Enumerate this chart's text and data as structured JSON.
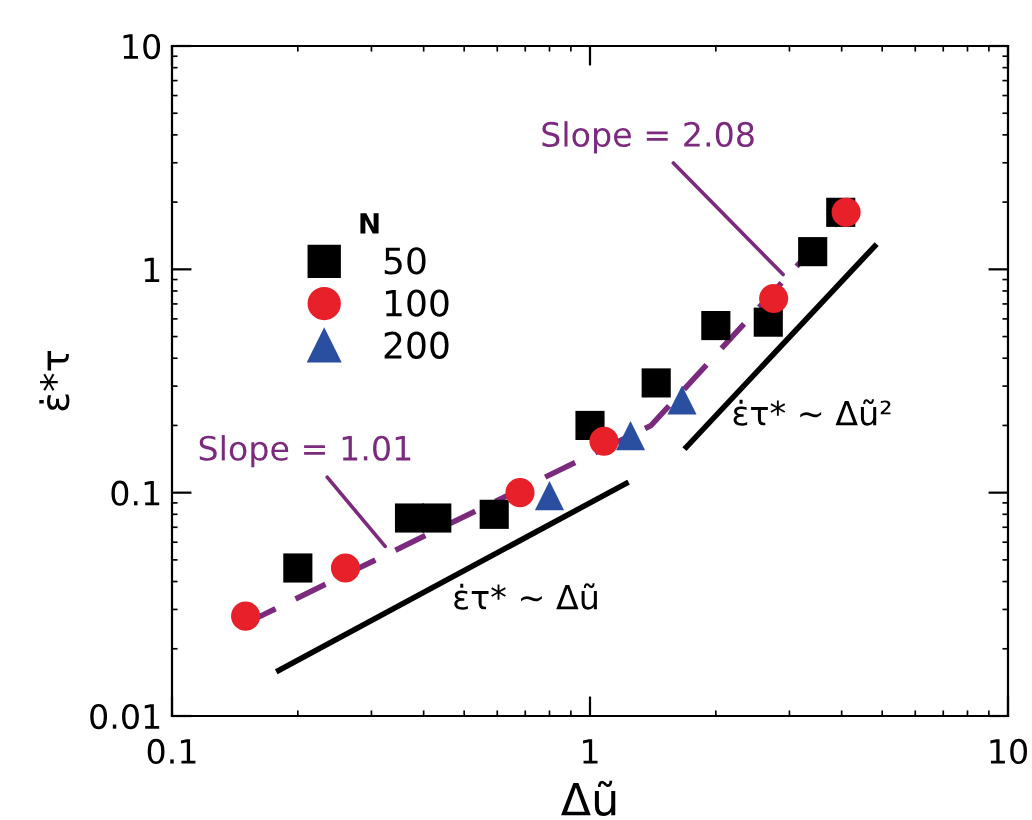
{
  "chart_data": {
    "type": "scatter",
    "xlabel": "Δũ",
    "ylabel": "ε̇*τ",
    "legend_title": "N",
    "log": "xy",
    "xlim": [
      0.1,
      10
    ],
    "ylim": [
      0.01,
      10
    ],
    "xticks": [
      0.1,
      1,
      10
    ],
    "yticks": [
      0.01,
      0.1,
      1,
      10
    ],
    "grid": false,
    "legend": "top left",
    "series": [
      {
        "name": "50",
        "color": "#000000",
        "marker": "square",
        "x": [
          0.2,
          0.37,
          0.43,
          0.59,
          1.0,
          1.44,
          2.0,
          2.67,
          3.41,
          3.98
        ],
        "values": [
          0.046,
          0.077,
          0.077,
          0.08,
          0.2,
          0.31,
          0.56,
          0.58,
          1.2,
          1.8
        ]
      },
      {
        "name": "100",
        "color": "#e8202a",
        "marker": "circle",
        "x": [
          0.15,
          0.26,
          0.68,
          1.08,
          2.75,
          4.1
        ],
        "values": [
          0.028,
          0.046,
          0.1,
          0.17,
          0.74,
          1.8
        ]
      },
      {
        "name": "200",
        "color": "#2a4fa0",
        "marker": "triangle",
        "x": [
          0.8,
          1.25,
          1.66
        ],
        "values": [
          0.097,
          0.18,
          0.26
        ]
      },
      {
        "type": "line",
        "color": "#7b2a7e",
        "line_style": "dashed",
        "x": [
          0.15,
          1.4,
          4.1
        ],
        "values": [
          0.026,
          0.2,
          1.8
        ]
      },
      {
        "type": "line",
        "color": "#000000",
        "line_style": "solid",
        "x": [
          0.18,
          1.22
        ],
        "values": [
          0.016,
          0.11
        ]
      },
      {
        "type": "line",
        "color": "#000000",
        "line_style": "solid",
        "x": [
          1.7,
          4.8
        ],
        "values": [
          0.16,
          1.27
        ]
      }
    ],
    "annotations": [
      {
        "text": "Slope = 2.08",
        "x": 2.96,
        "y": 0.91
      },
      {
        "text": "Slope = 1.01",
        "x": 0.33,
        "y": 0.055
      },
      "ε̇τ* ~ Δũ",
      "ε̇τ* ~ Δũ²"
    ]
  }
}
